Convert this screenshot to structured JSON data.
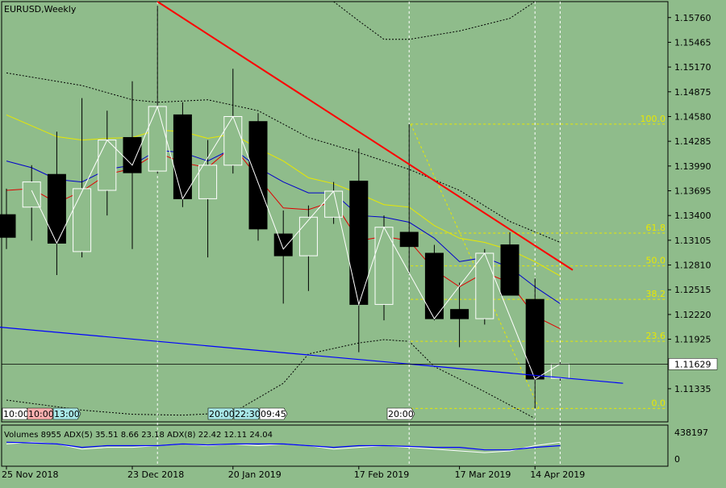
{
  "colors": {
    "background": "#8fbc8b",
    "bull_fill": "#8fbc8b",
    "bear_fill": "#000000",
    "candle_stroke": "#000000",
    "ma_yellow": "#e8e800",
    "ma_blue": "#0000cc",
    "ma_red": "#e00000",
    "zigzag": "#ffffff",
    "envelope": "#000000",
    "trend_red": "#ff0000",
    "trend_blue": "#0000ff",
    "fib": "#e8e800",
    "current_price_bg": "#ffffff"
  },
  "chart_data": {
    "type": "candlestick",
    "title": "EURUSD,Weekly",
    "symbol": "EURUSD",
    "timeframe": "Weekly",
    "current_price": "1.11629",
    "ylim": [
      1.1094,
      1.1595
    ],
    "y_ticks": [
      "1.15760",
      "1.15465",
      "1.15170",
      "1.14875",
      "1.14580",
      "1.14285",
      "1.13990",
      "1.13695",
      "1.13400",
      "1.13105",
      "1.12810",
      "1.12515",
      "1.12220",
      "1.11925",
      "1.11335"
    ],
    "x_labels": [
      "25 Nov 2018",
      "23 Dec 2018",
      "20 Jan 2019",
      "17 Feb 2019",
      "17 Mar 2019",
      "14 Apr 2019"
    ],
    "candles": [
      {
        "o": 1.1341,
        "h": 1.1372,
        "l": 1.13,
        "c": 1.1314
      },
      {
        "o": 1.135,
        "h": 1.14,
        "l": 1.131,
        "c": 1.138
      },
      {
        "o": 1.1389,
        "h": 1.144,
        "l": 1.1269,
        "c": 1.1307
      },
      {
        "o": 1.1297,
        "h": 1.148,
        "l": 1.129,
        "c": 1.1372
      },
      {
        "o": 1.137,
        "h": 1.1465,
        "l": 1.134,
        "c": 1.143
      },
      {
        "o": 1.1433,
        "h": 1.15,
        "l": 1.13,
        "c": 1.1391
      },
      {
        "o": 1.1393,
        "h": 1.159,
        "l": 1.139,
        "c": 1.147
      },
      {
        "o": 1.146,
        "h": 1.1475,
        "l": 1.135,
        "c": 1.136
      },
      {
        "o": 1.136,
        "h": 1.143,
        "l": 1.129,
        "c": 1.14
      },
      {
        "o": 1.14,
        "h": 1.1515,
        "l": 1.139,
        "c": 1.1458
      },
      {
        "o": 1.1452,
        "h": 1.1462,
        "l": 1.131,
        "c": 1.1324
      },
      {
        "o": 1.1318,
        "h": 1.1346,
        "l": 1.1235,
        "c": 1.1292
      },
      {
        "o": 1.1292,
        "h": 1.1352,
        "l": 1.125,
        "c": 1.1338
      },
      {
        "o": 1.1338,
        "h": 1.138,
        "l": 1.133,
        "c": 1.1369
      },
      {
        "o": 1.1381,
        "h": 1.142,
        "l": 1.1177,
        "c": 1.1234
      },
      {
        "o": 1.1234,
        "h": 1.134,
        "l": 1.1215,
        "c": 1.1326
      },
      {
        "o": 1.132,
        "h": 1.1449,
        "l": 1.127,
        "c": 1.1303
      },
      {
        "o": 1.1295,
        "h": 1.1305,
        "l": 1.1215,
        "c": 1.1217
      },
      {
        "o": 1.1228,
        "h": 1.126,
        "l": 1.1183,
        "c": 1.1217
      },
      {
        "o": 1.1217,
        "h": 1.13,
        "l": 1.121,
        "c": 1.1295
      },
      {
        "o": 1.1305,
        "h": 1.132,
        "l": 1.1245,
        "c": 1.1245
      },
      {
        "o": 1.124,
        "h": 1.1265,
        "l": 1.111,
        "c": 1.1145
      },
      {
        "o": 1.1146,
        "h": 1.1165,
        "l": 1.1143,
        "c": 1.1163
      }
    ],
    "ma_yellow": [
      1.146,
      1.1447,
      1.1434,
      1.143,
      1.1432,
      1.1433,
      1.1442,
      1.144,
      1.1432,
      1.1437,
      1.142,
      1.1405,
      1.1385,
      1.1378,
      1.1366,
      1.1353,
      1.135,
      1.1328,
      1.1313,
      1.1308,
      1.1299,
      1.1285,
      1.1268
    ],
    "ma_blue": [
      1.1405,
      1.1397,
      1.1383,
      1.138,
      1.1395,
      1.14,
      1.1418,
      1.1415,
      1.1405,
      1.142,
      1.1397,
      1.138,
      1.1367,
      1.1367,
      1.134,
      1.1338,
      1.1332,
      1.1313,
      1.1285,
      1.129,
      1.1278,
      1.1255,
      1.1235
    ],
    "ma_red": [
      1.137,
      1.1372,
      1.1355,
      1.1369,
      1.1389,
      1.1396,
      1.1415,
      1.1403,
      1.1397,
      1.1423,
      1.1385,
      1.1349,
      1.1347,
      1.1357,
      1.131,
      1.1315,
      1.131,
      1.1275,
      1.1255,
      1.1272,
      1.126,
      1.122,
      1.1205
    ],
    "zigzag": [
      {
        "i": 1,
        "p": 1.137
      },
      {
        "i": 2,
        "p": 1.1307
      },
      {
        "i": 4,
        "p": 1.143
      },
      {
        "i": 5,
        "p": 1.14
      },
      {
        "i": 6,
        "p": 1.147
      },
      {
        "i": 7,
        "p": 1.136
      },
      {
        "i": 9,
        "p": 1.1458
      },
      {
        "i": 11,
        "p": 1.13
      },
      {
        "i": 13,
        "p": 1.1369
      },
      {
        "i": 14,
        "p": 1.1234
      },
      {
        "i": 15,
        "p": 1.1326
      },
      {
        "i": 17,
        "p": 1.1217
      },
      {
        "i": 19,
        "p": 1.1295
      },
      {
        "i": 21,
        "p": 1.1145
      },
      {
        "i": 22,
        "p": 1.1163
      }
    ],
    "envelope_upper": [
      {
        "i": 0,
        "p": 1.151
      },
      {
        "i": 3,
        "p": 1.1495
      },
      {
        "i": 5,
        "p": 1.1478
      },
      {
        "i": 6,
        "p": 1.1475
      },
      {
        "i": 8,
        "p": 1.1478
      },
      {
        "i": 10,
        "p": 1.1465
      },
      {
        "i": 12,
        "p": 1.1433
      },
      {
        "i": 14,
        "p": 1.1415
      },
      {
        "i": 16,
        "p": 1.1395
      },
      {
        "i": 18,
        "p": 1.137
      },
      {
        "i": 20,
        "p": 1.1333
      },
      {
        "i": 22,
        "p": 1.1308
      }
    ],
    "envelope_lower": [
      {
        "i": 0,
        "p": 1.112
      },
      {
        "i": 3,
        "p": 1.1108
      },
      {
        "i": 5,
        "p": 1.1103
      },
      {
        "i": 7,
        "p": 1.1102
      },
      {
        "i": 9,
        "p": 1.1105
      },
      {
        "i": 11,
        "p": 1.114
      },
      {
        "i": 12,
        "p": 1.1175
      },
      {
        "i": 14,
        "p": 1.1188
      },
      {
        "i": 15,
        "p": 1.1192
      },
      {
        "i": 16,
        "p": 1.119
      },
      {
        "i": 17,
        "p": 1.116
      },
      {
        "i": 19,
        "p": 1.113
      },
      {
        "i": 21,
        "p": 1.1098
      }
    ],
    "envelope_top": [
      {
        "i": 13,
        "p": 1.1595
      },
      {
        "i": 14,
        "p": 1.1572
      },
      {
        "i": 15,
        "p": 1.155
      },
      {
        "i": 16,
        "p": 1.155
      },
      {
        "i": 18,
        "p": 1.156
      },
      {
        "i": 20,
        "p": 1.1575
      },
      {
        "i": 21,
        "p": 1.1595
      }
    ],
    "trendline_red": [
      {
        "i": 6,
        "p": 1.1595
      },
      {
        "i": 22.5,
        "p": 1.1275
      }
    ],
    "trendline_blue": [
      {
        "i": -0.3,
        "p": 1.1207
      },
      {
        "i": 24.5,
        "p": 1.114
      }
    ],
    "fib": {
      "high": 1.1449,
      "low": 1.111,
      "levels": [
        {
          "label": "100.0",
          "p": 1.1449
        },
        {
          "label": "61.8",
          "p": 1.1319
        },
        {
          "label": "50.0",
          "p": 1.128
        },
        {
          "label": "38.2",
          "p": 1.124
        },
        {
          "label": "23.6",
          "p": 1.119
        },
        {
          "label": "0.0",
          "p": 1.111
        }
      ]
    },
    "vertical_dashed_at": [
      6,
      16,
      21,
      22
    ],
    "session_labels": [
      {
        "text": "10:00",
        "style": "white",
        "i": 0
      },
      {
        "text": "10:00",
        "style": "pink",
        "i": 1
      },
      {
        "text": "13:00",
        "style": "cyan",
        "i": 2
      },
      {
        "text": "20:00",
        "style": "cyan",
        "i": 8
      },
      {
        "text": "22:30",
        "style": "cyan",
        "i": 9
      },
      {
        "text": "09:45",
        "style": "white",
        "i": 10
      },
      {
        "text": "20:00",
        "style": "white",
        "i": 15
      }
    ],
    "indicator": {
      "label": "Volumes 8955 ADX(5) 35.51 8.66 23.18 ADX(8) 22.42 12.11 24.04",
      "ymax_label": "438197",
      "ymin_label": "0",
      "adx_white": [
        0.55,
        0.6,
        0.55,
        0.4,
        0.45,
        0.45,
        0.5,
        0.55,
        0.5,
        0.55,
        0.5,
        0.55,
        0.5,
        0.4,
        0.45,
        0.5,
        0.45,
        0.4,
        0.35,
        0.3,
        0.35,
        0.5,
        0.6
      ],
      "adx_blue": [
        0.6,
        0.58,
        0.55,
        0.45,
        0.5,
        0.5,
        0.5,
        0.55,
        0.52,
        0.55,
        0.55,
        0.55,
        0.5,
        0.45,
        0.5,
        0.5,
        0.48,
        0.45,
        0.45,
        0.38,
        0.38,
        0.45,
        0.5
      ]
    }
  }
}
